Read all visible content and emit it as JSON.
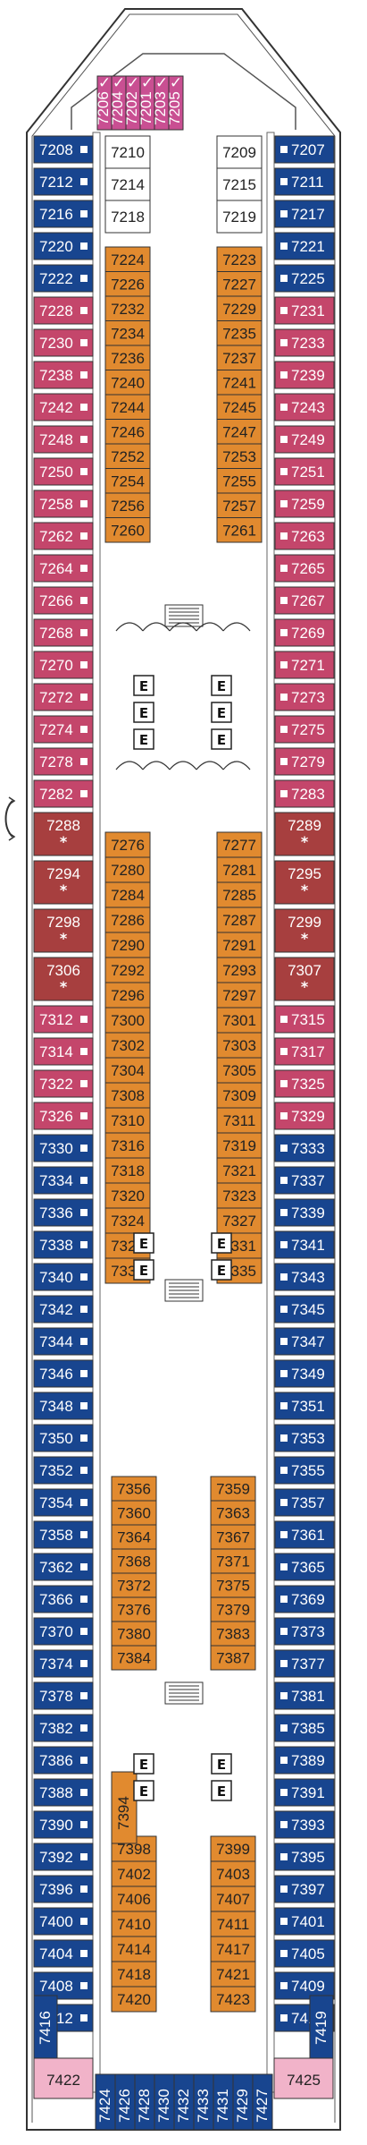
{
  "colors": {
    "balcony": "#c4466b",
    "suite": "#a73f3f",
    "oceanview": "#18458f",
    "interior": "#e18a2f",
    "accessible_suite": "#c94f92",
    "spa_pink": "#f1b3c9",
    "outline": "#333333"
  },
  "icons": [
    "bed-icon",
    "sofa-bed-icon",
    "elevator-icon",
    "stairs-icon",
    "handicap-icon",
    "pullman-icon",
    "connecting-icon",
    "arrow-icon"
  ],
  "top_suites": [
    "7206",
    "7204",
    "7202",
    "7201",
    "7203",
    "7205"
  ],
  "outer_left": [
    {
      "num": "7208",
      "type": "oceanview"
    },
    {
      "num": "7212",
      "type": "oceanview"
    },
    {
      "num": "7216",
      "type": "oceanview"
    },
    {
      "num": "7220",
      "type": "oceanview"
    },
    {
      "num": "7222",
      "type": "oceanview"
    },
    {
      "num": "7228",
      "type": "balcony"
    },
    {
      "num": "7230",
      "type": "balcony"
    },
    {
      "num": "7238",
      "type": "balcony"
    },
    {
      "num": "7242",
      "type": "balcony"
    },
    {
      "num": "7248",
      "type": "balcony"
    },
    {
      "num": "7250",
      "type": "balcony"
    },
    {
      "num": "7258",
      "type": "balcony"
    },
    {
      "num": "7262",
      "type": "balcony"
    },
    {
      "num": "7264",
      "type": "balcony"
    },
    {
      "num": "7266",
      "type": "balcony"
    },
    {
      "num": "7268",
      "type": "balcony"
    },
    {
      "num": "7270",
      "type": "balcony"
    },
    {
      "num": "7272",
      "type": "balcony"
    },
    {
      "num": "7274",
      "type": "balcony"
    },
    {
      "num": "7278",
      "type": "balcony"
    },
    {
      "num": "7282",
      "type": "balcony"
    },
    {
      "num": "7288",
      "type": "suite",
      "star": "*"
    },
    {
      "num": "7294",
      "type": "suite",
      "star": "*"
    },
    {
      "num": "7298",
      "type": "suite",
      "star": "*"
    },
    {
      "num": "7306",
      "type": "suite",
      "star": "*"
    },
    {
      "num": "7312",
      "type": "balcony"
    },
    {
      "num": "7314",
      "type": "balcony"
    },
    {
      "num": "7322",
      "type": "balcony"
    },
    {
      "num": "7326",
      "type": "balcony"
    },
    {
      "num": "7330",
      "type": "oceanview"
    },
    {
      "num": "7334",
      "type": "oceanview"
    },
    {
      "num": "7336",
      "type": "oceanview"
    },
    {
      "num": "7338",
      "type": "oceanview"
    },
    {
      "num": "7340",
      "type": "oceanview"
    },
    {
      "num": "7342",
      "type": "oceanview"
    },
    {
      "num": "7344",
      "type": "oceanview"
    },
    {
      "num": "7346",
      "type": "oceanview"
    },
    {
      "num": "7348",
      "type": "oceanview"
    },
    {
      "num": "7350",
      "type": "oceanview"
    },
    {
      "num": "7352",
      "type": "oceanview"
    },
    {
      "num": "7354",
      "type": "oceanview"
    },
    {
      "num": "7358",
      "type": "oceanview"
    },
    {
      "num": "7362",
      "type": "oceanview"
    },
    {
      "num": "7366",
      "type": "oceanview"
    },
    {
      "num": "7370",
      "type": "oceanview"
    },
    {
      "num": "7374",
      "type": "oceanview"
    },
    {
      "num": "7378",
      "type": "oceanview"
    },
    {
      "num": "7382",
      "type": "oceanview"
    },
    {
      "num": "7386",
      "type": "oceanview"
    },
    {
      "num": "7388",
      "type": "oceanview"
    },
    {
      "num": "7390",
      "type": "oceanview"
    },
    {
      "num": "7392",
      "type": "oceanview"
    },
    {
      "num": "7396",
      "type": "oceanview"
    },
    {
      "num": "7400",
      "type": "oceanview"
    },
    {
      "num": "7404",
      "type": "oceanview"
    },
    {
      "num": "7408",
      "type": "oceanview"
    },
    {
      "num": "7412",
      "type": "oceanview"
    }
  ],
  "outer_right": [
    {
      "num": "7207",
      "type": "oceanview"
    },
    {
      "num": "7211",
      "type": "oceanview"
    },
    {
      "num": "7217",
      "type": "oceanview"
    },
    {
      "num": "7221",
      "type": "oceanview"
    },
    {
      "num": "7225",
      "type": "oceanview"
    },
    {
      "num": "7231",
      "type": "balcony"
    },
    {
      "num": "7233",
      "type": "balcony"
    },
    {
      "num": "7239",
      "type": "balcony"
    },
    {
      "num": "7243",
      "type": "balcony"
    },
    {
      "num": "7249",
      "type": "balcony"
    },
    {
      "num": "7251",
      "type": "balcony"
    },
    {
      "num": "7259",
      "type": "balcony"
    },
    {
      "num": "7263",
      "type": "balcony"
    },
    {
      "num": "7265",
      "type": "balcony"
    },
    {
      "num": "7267",
      "type": "balcony"
    },
    {
      "num": "7269",
      "type": "balcony"
    },
    {
      "num": "7271",
      "type": "balcony"
    },
    {
      "num": "7273",
      "type": "balcony"
    },
    {
      "num": "7275",
      "type": "balcony"
    },
    {
      "num": "7279",
      "type": "balcony"
    },
    {
      "num": "7283",
      "type": "balcony"
    },
    {
      "num": "7289",
      "type": "suite",
      "star": "*"
    },
    {
      "num": "7295",
      "type": "suite",
      "star": "*"
    },
    {
      "num": "7299",
      "type": "suite",
      "star": "*"
    },
    {
      "num": "7307",
      "type": "suite",
      "star": "*"
    },
    {
      "num": "7315",
      "type": "balcony"
    },
    {
      "num": "7317",
      "type": "balcony"
    },
    {
      "num": "7325",
      "type": "balcony"
    },
    {
      "num": "7329",
      "type": "balcony"
    },
    {
      "num": "7333",
      "type": "oceanview"
    },
    {
      "num": "7337",
      "type": "oceanview"
    },
    {
      "num": "7339",
      "type": "oceanview"
    },
    {
      "num": "7341",
      "type": "oceanview"
    },
    {
      "num": "7343",
      "type": "oceanview"
    },
    {
      "num": "7345",
      "type": "oceanview"
    },
    {
      "num": "7347",
      "type": "oceanview"
    },
    {
      "num": "7349",
      "type": "oceanview"
    },
    {
      "num": "7351",
      "type": "oceanview"
    },
    {
      "num": "7353",
      "type": "oceanview"
    },
    {
      "num": "7355",
      "type": "oceanview"
    },
    {
      "num": "7357",
      "type": "oceanview"
    },
    {
      "num": "7361",
      "type": "oceanview"
    },
    {
      "num": "7365",
      "type": "oceanview"
    },
    {
      "num": "7369",
      "type": "oceanview"
    },
    {
      "num": "7373",
      "type": "oceanview"
    },
    {
      "num": "7377",
      "type": "oceanview"
    },
    {
      "num": "7381",
      "type": "oceanview"
    },
    {
      "num": "7385",
      "type": "oceanview"
    },
    {
      "num": "7389",
      "type": "oceanview"
    },
    {
      "num": "7391",
      "type": "oceanview"
    },
    {
      "num": "7393",
      "type": "oceanview"
    },
    {
      "num": "7395",
      "type": "oceanview"
    },
    {
      "num": "7397",
      "type": "oceanview"
    },
    {
      "num": "7401",
      "type": "oceanview"
    },
    {
      "num": "7405",
      "type": "oceanview"
    },
    {
      "num": "7409",
      "type": "oceanview"
    },
    {
      "num": "7415",
      "type": "oceanview"
    }
  ],
  "inner_top_left": [
    "7210",
    "7214",
    "7218"
  ],
  "inner_top_right": [
    "7209",
    "7215",
    "7219"
  ],
  "inner_block1_left": [
    "7224",
    "7226",
    "7232",
    "7234",
    "7236",
    "7240",
    "7244",
    "7246",
    "7252",
    "7254",
    "7256",
    "7260"
  ],
  "inner_block1_right": [
    "7223",
    "7227",
    "7229",
    "7235",
    "7237",
    "7241",
    "7245",
    "7247",
    "7253",
    "7255",
    "7257",
    "7261"
  ],
  "inner_block2_left": [
    "7276",
    "7280",
    "7284",
    "7286",
    "7290",
    "7292",
    "7296",
    "7300",
    "7302",
    "7304",
    "7308",
    "7310",
    "7316",
    "7318",
    "7320",
    "7324",
    "7328",
    "7332"
  ],
  "inner_block2_right": [
    "7277",
    "7281",
    "7285",
    "7287",
    "7291",
    "7293",
    "7297",
    "7301",
    "7303",
    "7305",
    "7309",
    "7311",
    "7319",
    "7321",
    "7323",
    "7327",
    "7331",
    "7335"
  ],
  "inner_block3_left": [
    "7356",
    "7360",
    "7364",
    "7368",
    "7372",
    "7376",
    "7380",
    "7384"
  ],
  "inner_block3_right": [
    "7359",
    "7363",
    "7367",
    "7371",
    "7375",
    "7379",
    "7383",
    "7387"
  ],
  "inner_block4_left": [
    "7398",
    "7402",
    "7406",
    "7410",
    "7414",
    "7418",
    "7420"
  ],
  "inner_block4_right": [
    "7399",
    "7403",
    "7407",
    "7411",
    "7417",
    "7421",
    "7423"
  ],
  "inner_side": "7394",
  "corner_left": "7416",
  "corner_right": "7419",
  "aft_left": "7422",
  "aft_right": "7425",
  "aft_row": [
    "7424",
    "7426",
    "7428",
    "7430",
    "7432",
    "7433",
    "7431",
    "7429",
    "7427"
  ],
  "elevator_letter": "E",
  "accessible_mark": "H"
}
